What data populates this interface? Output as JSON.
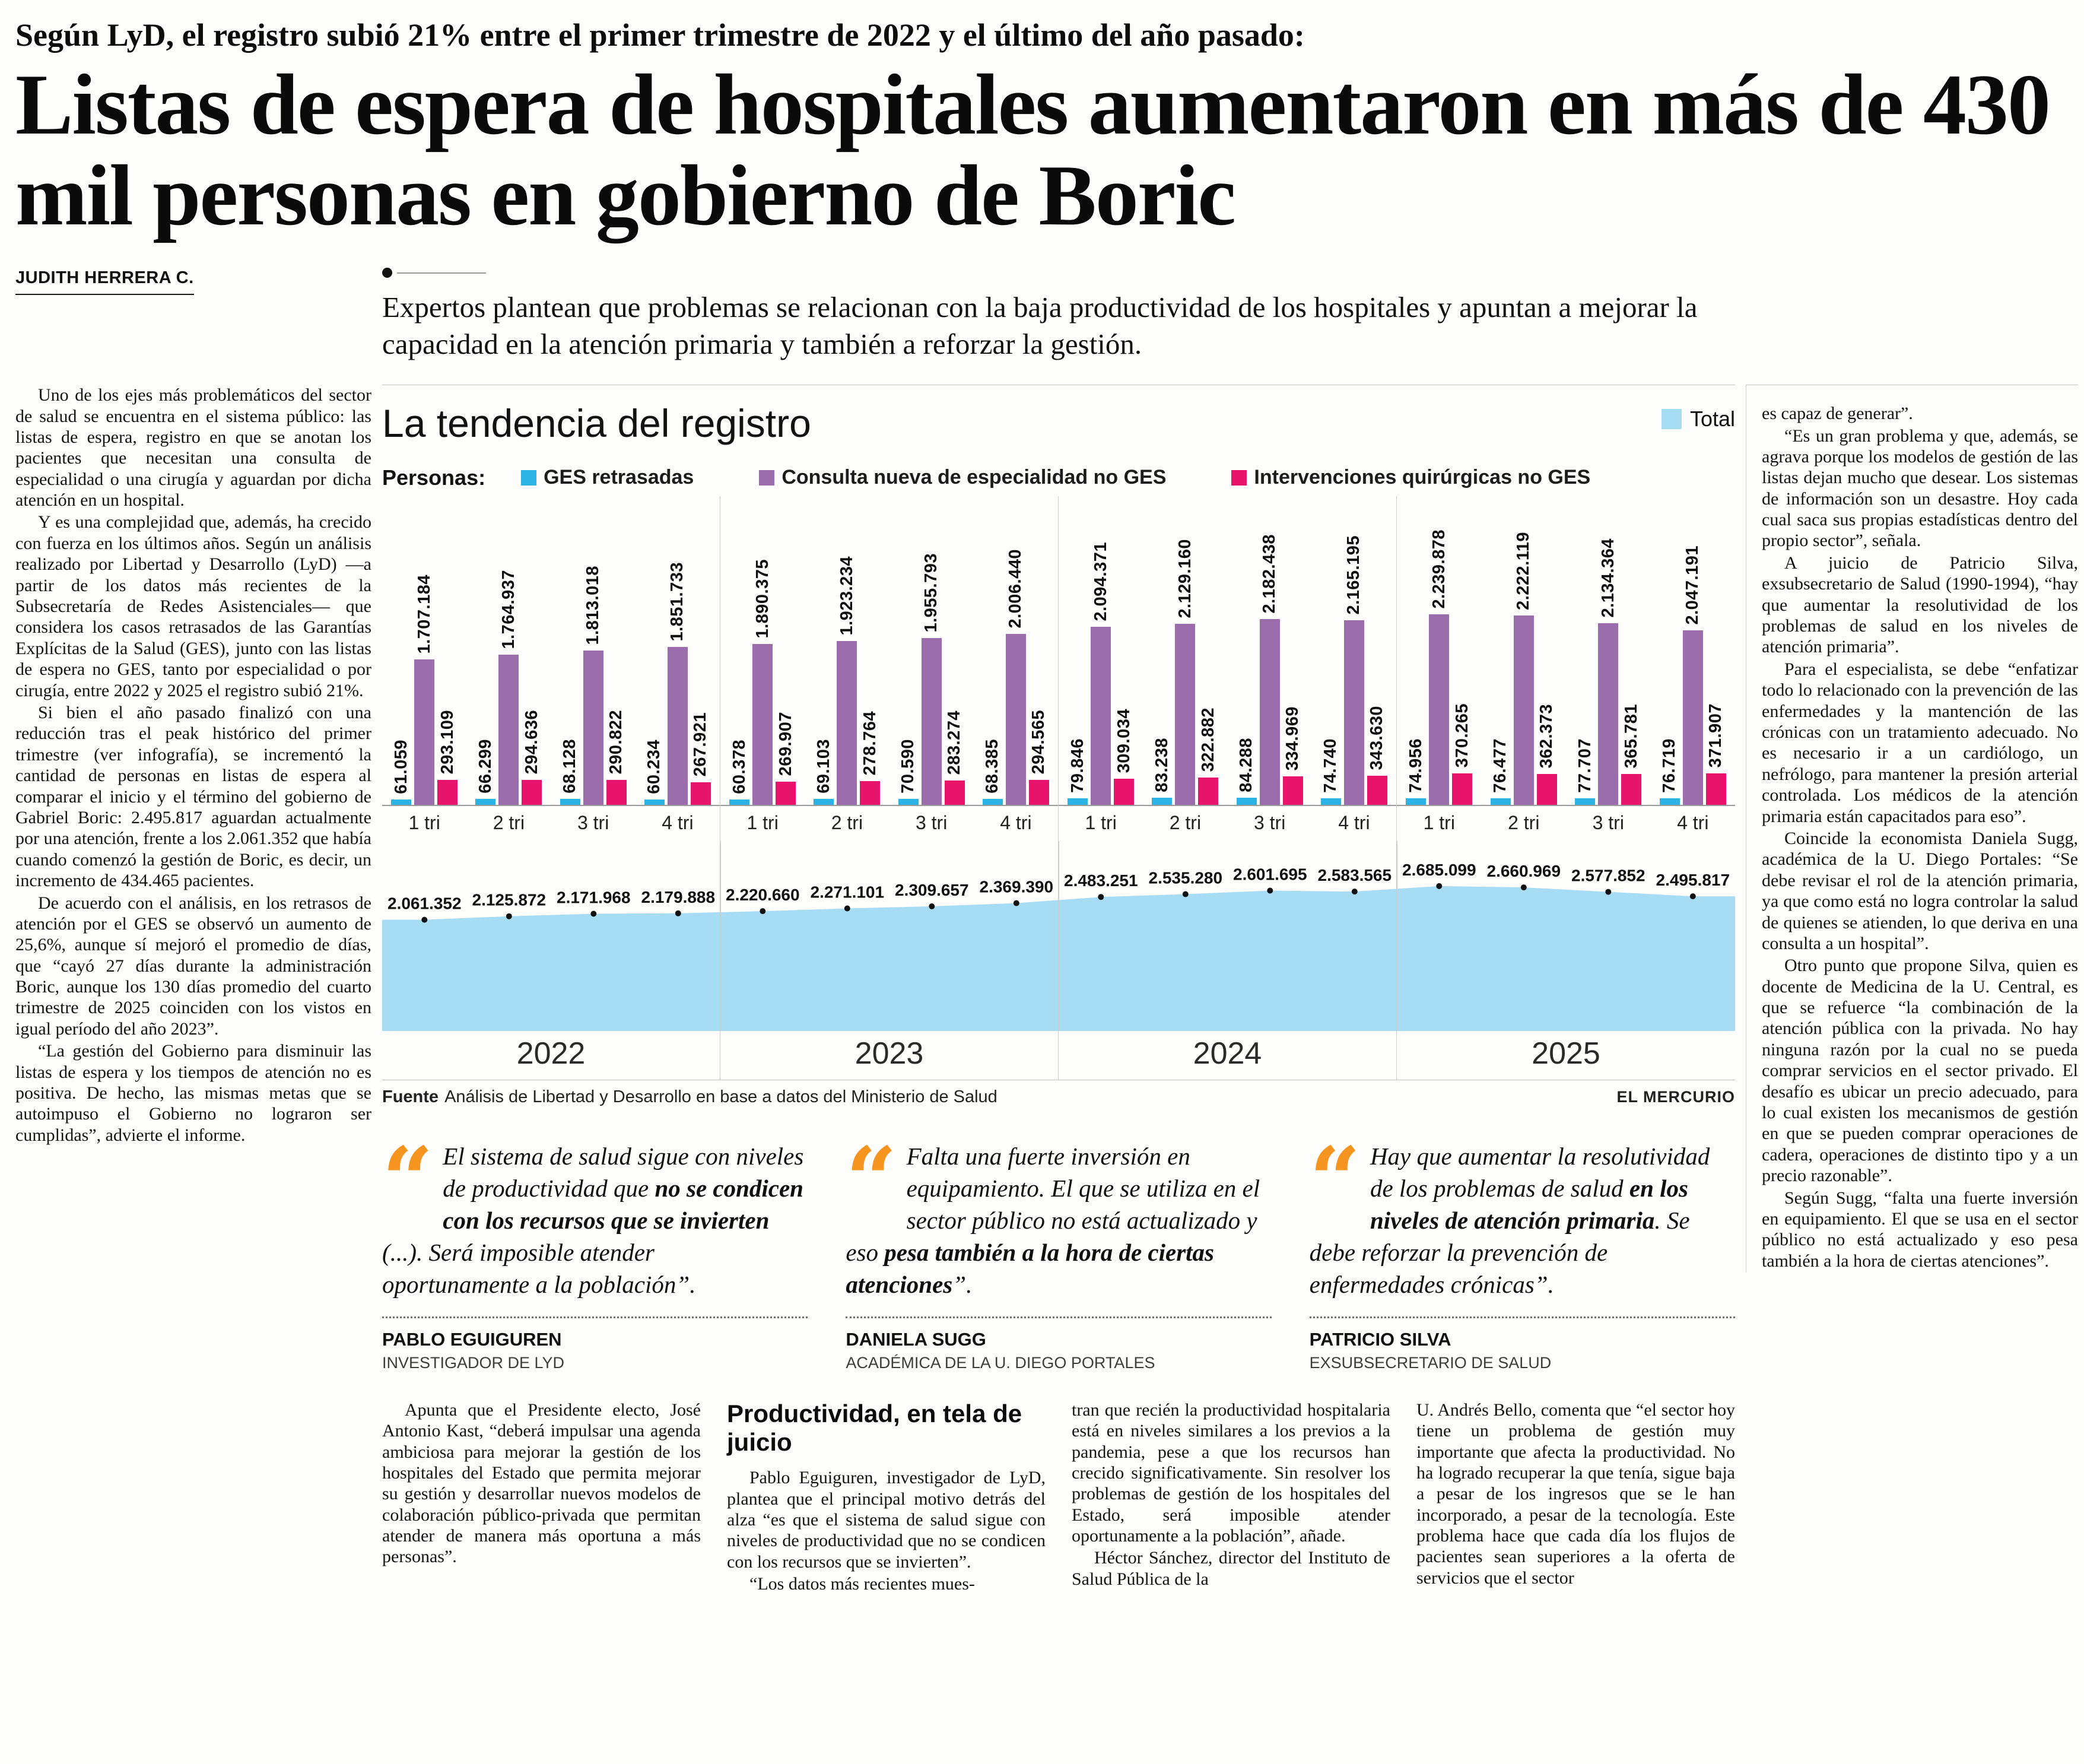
{
  "header": {
    "kicker": "Según LyD, el registro subió 21% entre el primer trimestre de 2022 y el último del año pasado:",
    "headline": "Listas de espera de hospitales aumentaron en más de 430 mil personas en gobierno de Boric",
    "byline": "JUDITH HERRERA C.",
    "deck": "Expertos plantean que problemas se relacionan con la baja productividad de los hospitales y apuntan a mejorar la capacidad en la atención primaria y también a reforzar la gestión."
  },
  "left_column": {
    "paragraphs": [
      "Uno de los ejes más problemáticos del sector de salud se encuentra en el sistema público: las listas de espera, registro en que se anotan los pacientes que necesitan una consulta de especialidad o una cirugía y aguardan por dicha atención en un hospital.",
      "Y es una complejidad que, además, ha crecido con fuerza en los últimos años. Según un análisis realizado por Libertad y Desarrollo (LyD) —a partir de los datos más recientes de la Subsecretaría de Redes Asistenciales— que considera los casos retrasados de las Garantías Explícitas de la Salud (GES), junto con las listas de espera no GES, tanto por especialidad o por cirugía, entre 2022 y 2025 el registro subió 21%.",
      "Si bien el año pasado finalizó con una reducción tras el peak histórico del primer trimestre (ver infografía), se incrementó la cantidad de personas en listas de espera al comparar el inicio y el término del gobierno de Gabriel Boric: 2.495.817 aguardan actualmente por una atención, frente a los 2.061.352 que había cuando comenzó la gestión de Boric, es decir, un incremento de 434.465 pacientes.",
      "De acuerdo con el análisis, en los retrasos de atención por el GES se observó un aumento de 25,6%, aunque sí mejoró el promedio de días, que “cayó 27 días durante la administración Boric, aunque los 130 días promedio del cuarto trimestre de 2025 coinciden con los vistos en igual período del año 2023”.",
      "“La gestión del Gobierno para disminuir las listas de espera y los tiempos de atención no es positiva. De hecho, las mismas metas que se autoimpuso el Gobierno no lograron ser cumplidas”, advierte el informe."
    ]
  },
  "chart": {
    "title": "La tendencia del registro",
    "total_legend": "Total",
    "personas_label": "Personas:",
    "legend": [
      {
        "label": "GES retrasadas",
        "color": "#2bb3e6"
      },
      {
        "label": "Consulta nueva de especialidad no GES",
        "color": "#9c6dad"
      },
      {
        "label": "Intervenciones quirúrgicas no GES",
        "color": "#e8146b"
      }
    ],
    "source_label": "Fuente",
    "source_text": "Análisis de Libertad y Desarrollo en base a datos del Ministerio de Salud",
    "credit": "EL MERCURIO"
  },
  "chart_data": {
    "type": "bar+area",
    "title": "La tendencia del registro",
    "years": [
      "2022",
      "2023",
      "2024",
      "2025"
    ],
    "quarters": [
      "1 tri",
      "2 tri",
      "3 tri",
      "4 tri"
    ],
    "bar_axis_max": 2300000,
    "area_axis_max": 2750000,
    "series": [
      {
        "name": "GES retrasadas",
        "color": "#2bb3e6",
        "values": [
          "61.059",
          "66.299",
          "68.128",
          "60.234",
          "60.378",
          "69.103",
          "70.590",
          "68.385",
          "79.846",
          "83.238",
          "84.288",
          "74.740",
          "74.956",
          "76.477",
          "77.707",
          "76.719"
        ]
      },
      {
        "name": "Consulta nueva de especialidad no GES",
        "color": "#9c6dad",
        "values": [
          "1.707.184",
          "1.764.937",
          "1.813.018",
          "1.851.733",
          "1.890.375",
          "1.923.234",
          "1.955.793",
          "2.006.440",
          "2.094.371",
          "2.129.160",
          "2.182.438",
          "2.165.195",
          "2.239.878",
          "2.222.119",
          "2.134.364",
          "2.047.191"
        ]
      },
      {
        "name": "Intervenciones quirúrgicas no GES",
        "color": "#e8146b",
        "values": [
          "293.109",
          "294.636",
          "290.822",
          "267.921",
          "269.907",
          "278.764",
          "283.274",
          "294.565",
          "309.034",
          "322.882",
          "334.969",
          "343.630",
          "370.265",
          "362.373",
          "365.781",
          "371.907"
        ]
      }
    ],
    "total_series": {
      "name": "Total",
      "color": "#a6dcf4",
      "values": [
        "2.061.352",
        "2.125.872",
        "2.171.968",
        "2.179.888",
        "2.220.660",
        "2.271.101",
        "2.309.657",
        "2.369.390",
        "2.483.251",
        "2.535.280",
        "2.601.695",
        "2.583.565",
        "2.685.099",
        "2.660.969",
        "2.577.852",
        "2.495.817"
      ]
    }
  },
  "quotes": [
    {
      "parts": [
        {
          "t": "El sistema de salud sigue con niveles de productividad que ",
          "b": false
        },
        {
          "t": "no se condicen con los recursos que se invierten",
          "b": true
        },
        {
          "t": " (...). Será imposible atender oportunamente a la población”.",
          "b": false
        }
      ],
      "name": "PABLO EGUIGUREN",
      "role": "INVESTIGADOR DE LYD"
    },
    {
      "parts": [
        {
          "t": "Falta una fuerte inversión en equipamiento. El que se utiliza en el sector público no está actualizado y eso ",
          "b": false
        },
        {
          "t": "pesa también a la hora de ciertas atenciones",
          "b": true
        },
        {
          "t": "”.",
          "b": false
        }
      ],
      "name": "DANIELA SUGG",
      "role": "ACADÉMICA DE LA U. DIEGO PORTALES"
    },
    {
      "parts": [
        {
          "t": "Hay que aumentar la resolutividad de los problemas de salud ",
          "b": false
        },
        {
          "t": "en los niveles de atención primaria",
          "b": true
        },
        {
          "t": ". Se debe reforzar la prevención de enfermedades crónicas”.",
          "b": false
        }
      ],
      "name": "PATRICIO SILVA",
      "role": "EXSUBSECRETARIO DE SALUD"
    }
  ],
  "bottom_columns": [
    {
      "heading": "",
      "paragraphs": [
        "Apunta que el Presidente electo, José Antonio Kast, “deberá impulsar una agenda ambiciosa para mejorar la gestión de los hospitales del Estado que permita mejorar su gestión y desarrollar nuevos modelos de colaboración público-privada que permitan atender de manera más oportuna a más personas”."
      ]
    },
    {
      "heading": "Productividad, en tela de juicio",
      "paragraphs": [
        "Pablo Eguiguren, investigador de LyD, plantea que el principal motivo detrás del alza “es que el sistema de salud sigue con niveles de productividad que no se condicen con los recursos que se invierten”.",
        "“Los datos más recientes mues-"
      ]
    },
    {
      "heading": "",
      "paragraphs": [
        "tran que recién la productividad hospitalaria está en niveles similares a los previos a la pandemia, pese a que los recursos han crecido significativamente. Sin resolver los problemas de gestión de los hospitales del Estado, será imposible atender oportunamente a la población”, añade.",
        "Héctor Sánchez, director del Instituto de Salud Pública de la"
      ]
    },
    {
      "heading": "",
      "paragraphs": [
        "U. Andrés Bello, comenta que “el sector hoy tiene un problema de gestión muy importante que afecta la productividad. No ha logrado recuperar la que tenía, sigue baja a pesar de los ingresos que se le han incorporado, a pesar de la tecnología. Este problema hace que cada día los flujos de pacientes sean superiores a la oferta de servicios que el sector"
      ]
    }
  ],
  "right_column": {
    "paragraphs": [
      "es capaz de generar”.",
      "“Es un gran problema y que, además, se agrava porque los modelos de gestión de las listas dejan mucho que desear. Los sistemas de información son un desastre. Hoy cada cual saca sus propias estadísticas dentro del propio sector”, señala.",
      "A juicio de Patricio Silva, exsubsecretario de Salud (1990-1994), “hay que aumentar la resolutividad de los problemas de salud en los niveles de atención primaria”.",
      "Para el especialista, se debe “enfatizar todo lo relacionado con la prevención de las enfermedades y la mantención de las crónicas con un tratamiento adecuado. No es necesario ir a un cardiólogo, un nefrólogo, para mantener la presión arterial controlada. Los médicos de la atención primaria están capacitados para eso”.",
      "Coincide la economista Daniela Sugg, académica de la U. Diego Portales: “Se debe revisar el rol de la atención primaria, ya que como está no logra controlar la salud de quienes se atienden, lo que deriva en una consulta a un hospital”.",
      "Otro punto que propone Silva, quien es docente de Medicina de la U. Central, es que se refuerce “la combinación de la atención pública con la privada. No hay ninguna razón por la cual no se pueda comprar servicios en el sector privado. El desafío es ubicar un precio adecuado, para lo cual existen los mecanismos de gestión en que se pueden comprar operaciones de cadera, operaciones de distinto tipo y a un precio razonable”.",
      "Según Sugg, “falta una fuerte inversión en equipamiento. El que se usa en el sector público no está actualizado y eso pesa también a la hora de ciertas atenciones”."
    ]
  }
}
